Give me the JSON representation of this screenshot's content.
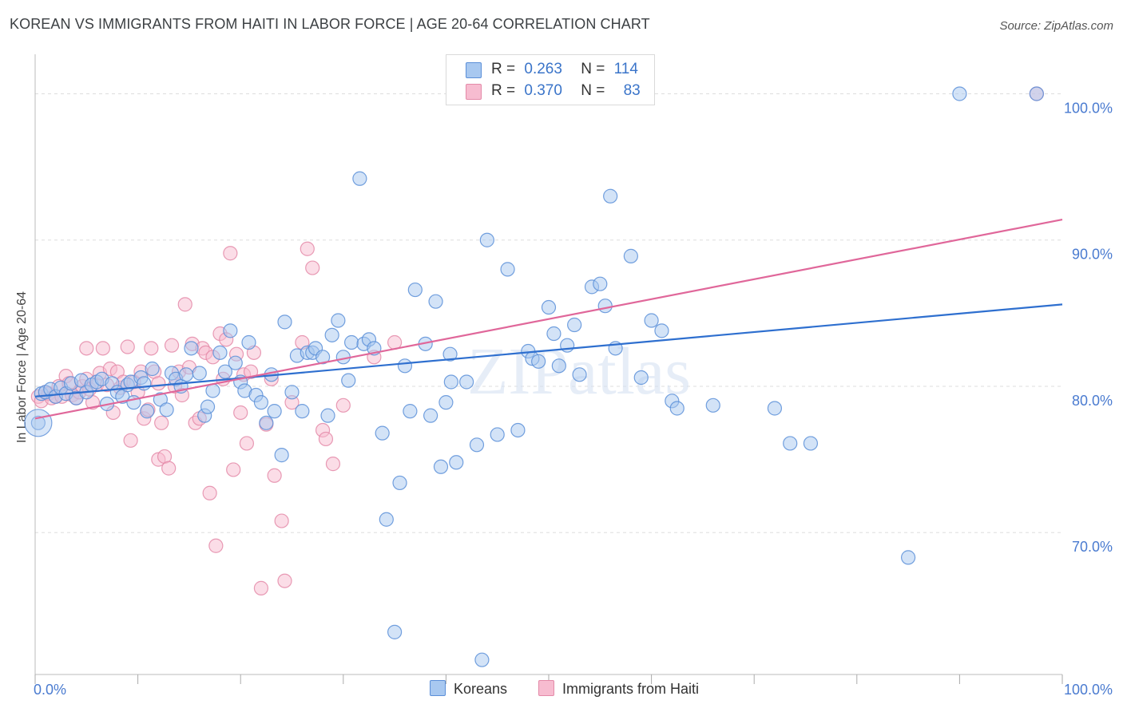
{
  "title": "KOREAN VS IMMIGRANTS FROM HAITI IN LABOR FORCE | AGE 20-64 CORRELATION CHART",
  "source": "Source: ZipAtlas.com",
  "watermark": "ZIPatlas",
  "legend_top": {
    "rows": [
      {
        "r_label": "R =",
        "r_value": "0.263",
        "n_label": "N =",
        "n_value": "114"
      },
      {
        "r_label": "R =",
        "r_value": "0.370",
        "n_label": "N =",
        "n_value": "83"
      }
    ]
  },
  "bottom_legend": {
    "koreans": "Koreans",
    "haiti": "Immigrants from Haiti"
  },
  "colors": {
    "blue_fill": "#a8c8f0",
    "blue_stroke": "#5b8fd8",
    "blue_line": "#2e6fcf",
    "pink_fill": "#f7bcd0",
    "pink_stroke": "#e48aa8",
    "pink_line": "#e0679a",
    "tick_text": "#4a7bd0",
    "grid": "#dddddd"
  },
  "chart_data": {
    "type": "scatter",
    "title": "KOREAN VS IMMIGRANTS FROM HAITI IN LABOR FORCE | AGE 20-64 CORRELATION CHART",
    "xlabel": "",
    "ylabel": "In Labor Force | Age 20-64",
    "xlim": [
      0,
      100
    ],
    "ylim": [
      60.3,
      102.7
    ],
    "x_tick_labels": [
      "0.0%",
      "100.0%"
    ],
    "y_ticks": [
      70,
      80,
      90,
      100
    ],
    "y_tick_labels": [
      "70.0%",
      "80.0%",
      "90.0%",
      "100.0%"
    ],
    "series": [
      {
        "name": "Koreans",
        "r": 0.263,
        "n": 114,
        "trend": {
          "x": [
            0,
            100
          ],
          "y": [
            79.3,
            85.6
          ]
        },
        "points": [
          [
            0.3,
            77.5
          ],
          [
            0.6,
            79.5
          ],
          [
            1.0,
            79.6
          ],
          [
            1.5,
            79.8
          ],
          [
            2.0,
            79.3
          ],
          [
            2.5,
            79.9
          ],
          [
            3.0,
            79.5
          ],
          [
            3.5,
            80.2
          ],
          [
            4.0,
            79.2
          ],
          [
            4.5,
            80.4
          ],
          [
            5.0,
            79.6
          ],
          [
            5.5,
            80.1
          ],
          [
            6.0,
            80.3
          ],
          [
            6.5,
            80.5
          ],
          [
            7.0,
            78.8
          ],
          [
            7.5,
            80.2
          ],
          [
            8.0,
            79.6
          ],
          [
            8.5,
            79.3
          ],
          [
            9.0,
            80.1
          ],
          [
            9.3,
            80.3
          ],
          [
            9.6,
            78.9
          ],
          [
            10.3,
            80.6
          ],
          [
            10.6,
            80.2
          ],
          [
            10.9,
            78.3
          ],
          [
            11.4,
            81.2
          ],
          [
            12.2,
            79.1
          ],
          [
            12.8,
            78.4
          ],
          [
            13.3,
            80.9
          ],
          [
            13.7,
            80.5
          ],
          [
            14.2,
            80.0
          ],
          [
            14.7,
            80.8
          ],
          [
            15.2,
            82.6
          ],
          [
            16.0,
            80.9
          ],
          [
            16.5,
            78.0
          ],
          [
            16.8,
            78.6
          ],
          [
            17.3,
            79.7
          ],
          [
            18.0,
            82.3
          ],
          [
            18.5,
            81.0
          ],
          [
            19.0,
            83.8
          ],
          [
            19.5,
            81.6
          ],
          [
            20.0,
            80.3
          ],
          [
            20.4,
            79.7
          ],
          [
            20.8,
            83.0
          ],
          [
            21.5,
            79.4
          ],
          [
            22.0,
            78.9
          ],
          [
            22.5,
            77.5
          ],
          [
            23.0,
            80.8
          ],
          [
            23.3,
            78.3
          ],
          [
            24.0,
            75.3
          ],
          [
            24.3,
            84.4
          ],
          [
            25.0,
            79.6
          ],
          [
            25.5,
            82.1
          ],
          [
            26.0,
            78.3
          ],
          [
            26.5,
            82.3
          ],
          [
            27.0,
            82.3
          ],
          [
            27.3,
            82.6
          ],
          [
            28.0,
            82.0
          ],
          [
            28.5,
            78.0
          ],
          [
            28.9,
            83.5
          ],
          [
            29.5,
            84.5
          ],
          [
            30.0,
            82.0
          ],
          [
            30.5,
            80.4
          ],
          [
            30.8,
            83.0
          ],
          [
            31.6,
            94.2
          ],
          [
            32.0,
            82.9
          ],
          [
            32.5,
            83.2
          ],
          [
            33.0,
            82.6
          ],
          [
            33.8,
            76.8
          ],
          [
            34.2,
            70.9
          ],
          [
            35.0,
            63.2
          ],
          [
            35.5,
            73.4
          ],
          [
            36.0,
            81.4
          ],
          [
            36.5,
            78.3
          ],
          [
            37.0,
            86.6
          ],
          [
            38.0,
            82.9
          ],
          [
            38.5,
            78.0
          ],
          [
            39.0,
            85.8
          ],
          [
            39.5,
            74.5
          ],
          [
            40.0,
            78.9
          ],
          [
            40.4,
            82.2
          ],
          [
            41.0,
            74.8
          ],
          [
            42.0,
            80.3
          ],
          [
            43.0,
            76.0
          ],
          [
            43.5,
            61.3
          ],
          [
            44.0,
            90.0
          ],
          [
            45.0,
            76.7
          ],
          [
            46.0,
            88.0
          ],
          [
            47.0,
            77.0
          ],
          [
            48.0,
            82.4
          ],
          [
            48.4,
            81.9
          ],
          [
            49.0,
            81.7
          ],
          [
            50.0,
            85.4
          ],
          [
            50.5,
            83.6
          ],
          [
            51.0,
            81.4
          ],
          [
            51.8,
            82.8
          ],
          [
            52.5,
            84.2
          ],
          [
            53.0,
            80.8
          ],
          [
            54.2,
            86.8
          ],
          [
            55.0,
            87.0
          ],
          [
            55.5,
            85.5
          ],
          [
            56.0,
            93.0
          ],
          [
            56.5,
            82.6
          ],
          [
            58.0,
            88.9
          ],
          [
            59.0,
            80.6
          ],
          [
            60.0,
            84.5
          ],
          [
            61.0,
            83.8
          ],
          [
            62.0,
            79.0
          ],
          [
            62.5,
            78.5
          ],
          [
            66.0,
            78.7
          ],
          [
            72.0,
            78.5
          ],
          [
            73.5,
            76.1
          ],
          [
            75.5,
            76.1
          ],
          [
            85.0,
            68.3
          ],
          [
            90.0,
            100.0
          ],
          [
            97.5,
            100.0
          ],
          [
            40.5,
            80.3
          ]
        ]
      },
      {
        "name": "Immigrants from Haiti",
        "r": 0.37,
        "n": 83,
        "trend": {
          "x": [
            0,
            100
          ],
          "y": [
            77.8,
            91.4
          ]
        },
        "points": [
          [
            0.3,
            79.3
          ],
          [
            0.6,
            79.0
          ],
          [
            1.0,
            79.6
          ],
          [
            1.3,
            79.5
          ],
          [
            1.6,
            79.2
          ],
          [
            2.0,
            79.3
          ],
          [
            2.3,
            80.0
          ],
          [
            2.6,
            79.3
          ],
          [
            3.0,
            80.7
          ],
          [
            3.3,
            80.2
          ],
          [
            3.6,
            79.4
          ],
          [
            4.0,
            79.2
          ],
          [
            4.3,
            79.6
          ],
          [
            4.6,
            80.0
          ],
          [
            5.0,
            80.5
          ],
          [
            5.3,
            79.8
          ],
          [
            5.6,
            78.9
          ],
          [
            6.0,
            80.1
          ],
          [
            6.3,
            80.9
          ],
          [
            6.6,
            82.6
          ],
          [
            7.0,
            80.1
          ],
          [
            7.3,
            81.2
          ],
          [
            7.6,
            78.2
          ],
          [
            8.0,
            81.0
          ],
          [
            8.3,
            79.9
          ],
          [
            8.6,
            80.3
          ],
          [
            9.0,
            82.7
          ],
          [
            9.3,
            76.3
          ],
          [
            9.6,
            80.3
          ],
          [
            10.0,
            79.6
          ],
          [
            10.3,
            81.0
          ],
          [
            10.6,
            77.8
          ],
          [
            11.0,
            78.4
          ],
          [
            11.3,
            82.6
          ],
          [
            11.6,
            81.0
          ],
          [
            12.0,
            75.0
          ],
          [
            12.3,
            77.5
          ],
          [
            12.6,
            75.2
          ],
          [
            13.0,
            74.4
          ],
          [
            13.3,
            82.8
          ],
          [
            13.6,
            80.0
          ],
          [
            14.0,
            81.0
          ],
          [
            14.3,
            79.4
          ],
          [
            14.6,
            85.6
          ],
          [
            15.0,
            81.3
          ],
          [
            15.3,
            82.9
          ],
          [
            15.6,
            77.5
          ],
          [
            16.0,
            77.8
          ],
          [
            16.3,
            82.6
          ],
          [
            16.6,
            82.3
          ],
          [
            17.0,
            72.7
          ],
          [
            17.3,
            82.0
          ],
          [
            17.6,
            69.1
          ],
          [
            18.0,
            83.6
          ],
          [
            18.3,
            80.5
          ],
          [
            18.6,
            83.2
          ],
          [
            19.0,
            89.1
          ],
          [
            19.3,
            74.3
          ],
          [
            19.6,
            82.2
          ],
          [
            20.0,
            78.2
          ],
          [
            20.3,
            80.8
          ],
          [
            20.6,
            76.1
          ],
          [
            21.0,
            81.0
          ],
          [
            21.3,
            82.3
          ],
          [
            22.0,
            66.2
          ],
          [
            22.5,
            77.4
          ],
          [
            23.0,
            80.5
          ],
          [
            23.3,
            73.9
          ],
          [
            24.0,
            70.8
          ],
          [
            24.3,
            66.7
          ],
          [
            25.0,
            78.9
          ],
          [
            26.0,
            83.0
          ],
          [
            26.5,
            89.4
          ],
          [
            27.0,
            88.1
          ],
          [
            28.0,
            77.0
          ],
          [
            28.3,
            76.4
          ],
          [
            29.0,
            74.7
          ],
          [
            30.0,
            78.7
          ],
          [
            33.0,
            82.0
          ],
          [
            35.0,
            83.0
          ],
          [
            97.5,
            100.0
          ],
          [
            5.0,
            82.6
          ],
          [
            12.0,
            80.2
          ]
        ]
      }
    ]
  }
}
